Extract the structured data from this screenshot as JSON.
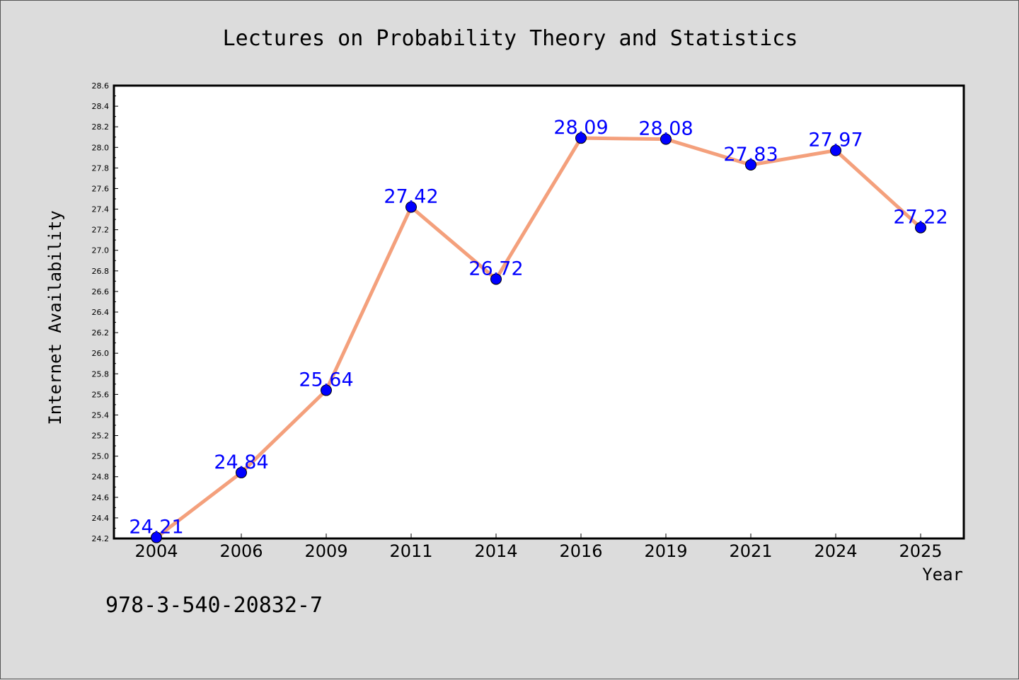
{
  "colors": {
    "figure_background": "#dcdcdc",
    "plot_background": "#ffffff",
    "line": "#f4a07c",
    "marker": "#0000ff",
    "data_label": "#0000ff",
    "text": "#000000"
  },
  "annotation": "978-3-540-20832-7",
  "chart_data": {
    "type": "line",
    "title": "Lectures on Probability Theory and Statistics",
    "xlabel": "Year",
    "ylabel": "Internet Availability",
    "categories": [
      "2004",
      "2006",
      "2009",
      "2011",
      "2014",
      "2016",
      "2019",
      "2021",
      "2024",
      "2025"
    ],
    "series": [
      {
        "values": [
          24.21,
          24.84,
          25.64,
          27.42,
          26.72,
          28.09,
          28.08,
          27.83,
          27.97,
          27.22
        ],
        "labels": [
          "24.21",
          "24.84",
          "25.64",
          "27.42",
          "26.72",
          "28.09",
          "28.08",
          "27.83",
          "27.97",
          "27.22"
        ]
      }
    ],
    "ylim": [
      24.2,
      28.6
    ],
    "yticks": [
      "24.2",
      "24.4",
      "24.6",
      "24.8",
      "25.0",
      "25.2",
      "25.4",
      "25.6",
      "25.8",
      "26.0",
      "26.2",
      "26.4",
      "26.6",
      "26.8",
      "27.0",
      "27.2",
      "27.4",
      "27.6",
      "27.8",
      "28.0",
      "28.2",
      "28.4",
      "28.6"
    ],
    "grid": false,
    "legend": "none",
    "marker": "circle"
  }
}
